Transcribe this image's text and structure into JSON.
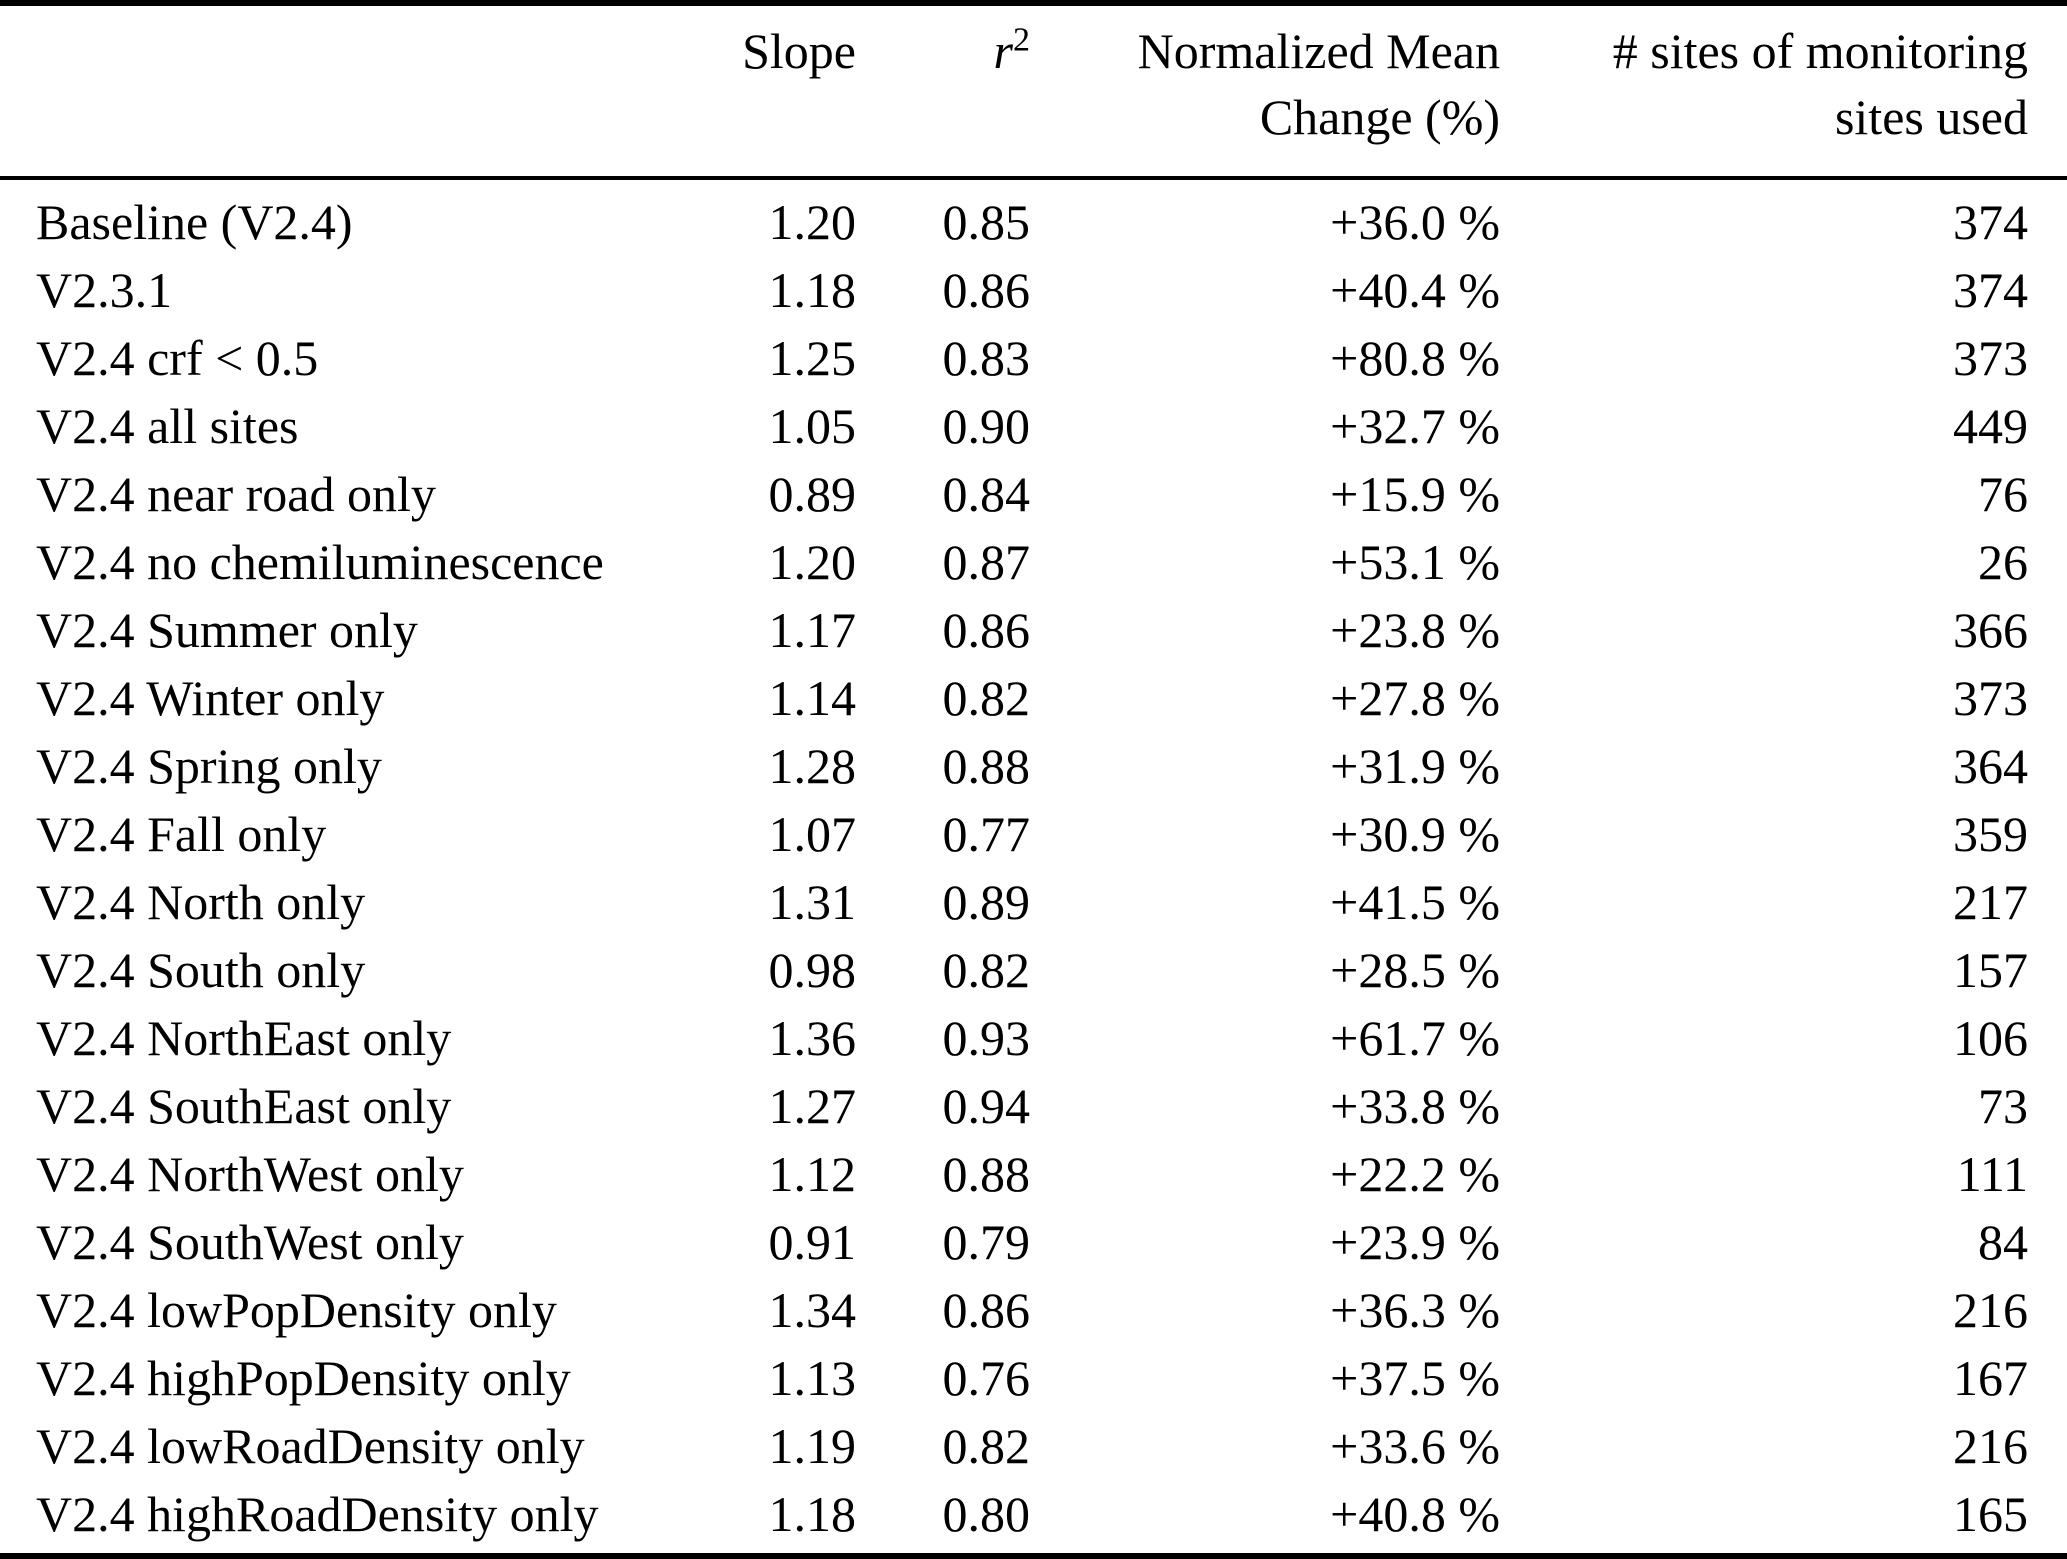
{
  "table": {
    "headers": {
      "row_label": "",
      "slope": "Slope",
      "r2_base": "r",
      "r2_sup": "2",
      "nmc_line1": "Normalized Mean",
      "nmc_line2": "Change (%)",
      "sites_line1": "# sites of monitoring",
      "sites_line2": "sites used"
    },
    "rows": [
      {
        "label": "Baseline (V2.4)",
        "slope": "1.20",
        "r2": "0.85",
        "nmc": "+36.0 %",
        "sites": "374"
      },
      {
        "label": "V2.3.1",
        "slope": "1.18",
        "r2": "0.86",
        "nmc": "+40.4 %",
        "sites": "374"
      },
      {
        "label": "V2.4 crf < 0.5",
        "slope": "1.25",
        "r2": "0.83",
        "nmc": "+80.8 %",
        "sites": "373"
      },
      {
        "label": "V2.4 all sites",
        "slope": "1.05",
        "r2": "0.90",
        "nmc": "+32.7 %",
        "sites": "449"
      },
      {
        "label": "V2.4 near road only",
        "slope": "0.89",
        "r2": "0.84",
        "nmc": "+15.9 %",
        "sites": "76"
      },
      {
        "label": "V2.4 no chemiluminescence",
        "slope": "1.20",
        "r2": "0.87",
        "nmc": "+53.1 %",
        "sites": "26"
      },
      {
        "label": "V2.4 Summer only",
        "slope": "1.17",
        "r2": "0.86",
        "nmc": "+23.8 %",
        "sites": "366"
      },
      {
        "label": "V2.4 Winter only",
        "slope": "1.14",
        "r2": "0.82",
        "nmc": "+27.8 %",
        "sites": "373"
      },
      {
        "label": "V2.4 Spring only",
        "slope": "1.28",
        "r2": "0.88",
        "nmc": "+31.9 %",
        "sites": "364"
      },
      {
        "label": "V2.4 Fall only",
        "slope": "1.07",
        "r2": "0.77",
        "nmc": "+30.9 %",
        "sites": "359"
      },
      {
        "label": "V2.4 North only",
        "slope": "1.31",
        "r2": "0.89",
        "nmc": "+41.5 %",
        "sites": "217"
      },
      {
        "label": "V2.4 South only",
        "slope": "0.98",
        "r2": "0.82",
        "nmc": "+28.5 %",
        "sites": "157"
      },
      {
        "label": "V2.4 NorthEast only",
        "slope": "1.36",
        "r2": "0.93",
        "nmc": "+61.7 %",
        "sites": "106"
      },
      {
        "label": "V2.4 SouthEast only",
        "slope": "1.27",
        "r2": "0.94",
        "nmc": "+33.8 %",
        "sites": "73"
      },
      {
        "label": "V2.4 NorthWest only",
        "slope": "1.12",
        "r2": "0.88",
        "nmc": "+22.2 %",
        "sites": "111"
      },
      {
        "label": "V2.4 SouthWest only",
        "slope": "0.91",
        "r2": "0.79",
        "nmc": "+23.9 %",
        "sites": "84"
      },
      {
        "label": "V2.4 lowPopDensity only",
        "slope": "1.34",
        "r2": "0.86",
        "nmc": "+36.3 %",
        "sites": "216"
      },
      {
        "label": "V2.4 highPopDensity only",
        "slope": "1.13",
        "r2": "0.76",
        "nmc": "+37.5 %",
        "sites": "167"
      },
      {
        "label": "V2.4 lowRoadDensity only",
        "slope": "1.19",
        "r2": "0.82",
        "nmc": "+33.6 %",
        "sites": "216"
      },
      {
        "label": "V2.4 highRoadDensity only",
        "slope": "1.18",
        "r2": "0.80",
        "nmc": "+40.8 %",
        "sites": "165"
      }
    ]
  }
}
